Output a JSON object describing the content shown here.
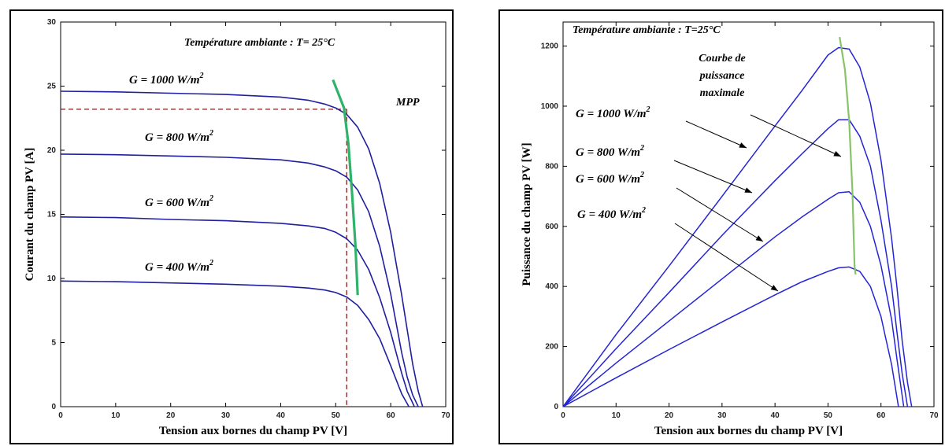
{
  "colors": {
    "curve": "#1f1fa0",
    "curve_power": "#2424d6",
    "mpp_left": "#2fb36a",
    "mpp_right": "#88c36a",
    "guide": "#8b1a1a",
    "arrow": "#000000"
  },
  "chart_data": [
    {
      "type": "line",
      "xlabel": "Tension aux bornes du champ PV [V]",
      "ylabel": "Courant du champ PV [A]",
      "xlim": [
        0,
        70
      ],
      "ylim": [
        0,
        30
      ],
      "x_ticks": [
        "0",
        "10",
        "20",
        "30",
        "40",
        "50",
        "60",
        "70"
      ],
      "y_ticks": [
        "0",
        "5",
        "10",
        "15",
        "20",
        "25",
        "30"
      ],
      "grid": false,
      "annotation": "Température  ambiante : T= 25°C",
      "series": [
        {
          "name": "G = 1000 W/m",
          "label_sup": "2",
          "isc": 24.6,
          "voc": 65.8,
          "x": [
            0,
            10,
            20,
            30,
            40,
            45,
            48,
            50,
            52,
            54,
            56,
            58,
            60,
            62,
            63,
            64,
            65,
            65.8
          ],
          "y": [
            24.6,
            24.55,
            24.45,
            24.35,
            24.15,
            23.9,
            23.6,
            23.3,
            22.8,
            21.8,
            20.1,
            17.4,
            13.6,
            8.7,
            6.0,
            3.3,
            1.2,
            0
          ]
        },
        {
          "name": "G = 800 W/m",
          "label_sup": "2",
          "isc": 19.7,
          "voc": 65.0,
          "x": [
            0,
            10,
            20,
            30,
            40,
            45,
            48,
            50,
            52,
            54,
            56,
            58,
            60,
            62,
            63,
            64,
            65.0
          ],
          "y": [
            19.7,
            19.65,
            19.55,
            19.45,
            19.25,
            19.0,
            18.7,
            18.4,
            17.9,
            16.9,
            15.2,
            12.5,
            8.8,
            4.2,
            2.3,
            0.9,
            0
          ]
        },
        {
          "name": "G = 600 W/m",
          "label_sup": "2",
          "isc": 14.8,
          "voc": 64.3,
          "x": [
            0,
            10,
            20,
            30,
            40,
            45,
            48,
            50,
            52,
            54,
            56,
            58,
            60,
            62,
            63,
            64.3
          ],
          "y": [
            14.8,
            14.75,
            14.6,
            14.5,
            14.3,
            14.1,
            13.9,
            13.6,
            13.1,
            12.2,
            10.7,
            8.5,
            5.8,
            2.6,
            1.2,
            0
          ]
        },
        {
          "name": "G = 400 W/m",
          "label_sup": "2",
          "isc": 9.8,
          "voc": 63.3,
          "x": [
            0,
            10,
            20,
            30,
            40,
            45,
            48,
            50,
            52,
            54,
            56,
            58,
            60,
            61,
            62,
            63.3
          ],
          "y": [
            9.8,
            9.75,
            9.65,
            9.55,
            9.4,
            9.25,
            9.1,
            8.9,
            8.55,
            7.9,
            6.8,
            5.3,
            3.2,
            2.1,
            1.0,
            0
          ]
        }
      ],
      "mpp_curve": {
        "label": "MPP",
        "x": [
          49.5,
          51.5,
          52.3,
          53,
          53.6,
          54
        ],
        "y": [
          25.5,
          23.3,
          20.5,
          16.5,
          12.5,
          8.7
        ]
      },
      "mpp_point": {
        "x": 52,
        "y": 23.2
      }
    },
    {
      "type": "line",
      "xlabel": "Tension aux bornes du champ PV [V]",
      "ylabel": "Puissance du champ PV  [W]",
      "xlim": [
        0,
        70
      ],
      "ylim": [
        0,
        1280
      ],
      "x_ticks": [
        "0",
        "10",
        "20",
        "30",
        "40",
        "50",
        "60",
        "70"
      ],
      "y_ticks": [
        "0",
        "200",
        "400",
        "600",
        "800",
        "1000",
        "1200"
      ],
      "grid": false,
      "annotation": "Température ambiante : T=25°C",
      "mpp_label": [
        "Courbe de",
        "puissance",
        "maximale"
      ],
      "series": [
        {
          "name": "G = 1000 W/m",
          "label_sup": "2",
          "x": [
            0,
            10,
            20,
            30,
            40,
            45,
            50,
            52,
            54,
            56,
            58,
            60,
            62,
            63,
            64,
            65,
            65.8
          ],
          "y": [
            0,
            240,
            468,
            700,
            934,
            1050,
            1170,
            1195,
            1190,
            1130,
            1010,
            820,
            560,
            400,
            220,
            80,
            0
          ]
        },
        {
          "name": "G = 800 W/m",
          "label_sup": "2",
          "x": [
            0,
            10,
            20,
            30,
            40,
            45,
            50,
            52,
            54,
            56,
            58,
            60,
            62,
            63,
            64,
            65.0
          ],
          "y": [
            0,
            193,
            380,
            570,
            752,
            840,
            925,
            955,
            955,
            900,
            800,
            620,
            400,
            250,
            110,
            0
          ]
        },
        {
          "name": "G = 600 W/m",
          "label_sup": "2",
          "x": [
            0,
            10,
            20,
            30,
            40,
            45,
            50,
            52,
            54,
            56,
            58,
            60,
            62,
            63,
            64.3
          ],
          "y": [
            0,
            145,
            285,
            425,
            565,
            630,
            690,
            712,
            715,
            680,
            600,
            470,
            290,
            160,
            0
          ]
        },
        {
          "name": "G = 400 W/m",
          "label_sup": "2",
          "x": [
            0,
            10,
            20,
            30,
            40,
            45,
            50,
            52,
            54,
            56,
            58,
            60,
            61,
            62,
            63.3
          ],
          "y": [
            0,
            96,
            190,
            282,
            372,
            415,
            450,
            462,
            465,
            450,
            400,
            300,
            220,
            140,
            0
          ]
        }
      ],
      "mpp_curve": {
        "x": [
          52.2,
          53.2,
          54,
          54.6,
          55,
          55.2
        ],
        "y": [
          1230,
          1120,
          950,
          720,
          470,
          440
        ]
      }
    }
  ]
}
